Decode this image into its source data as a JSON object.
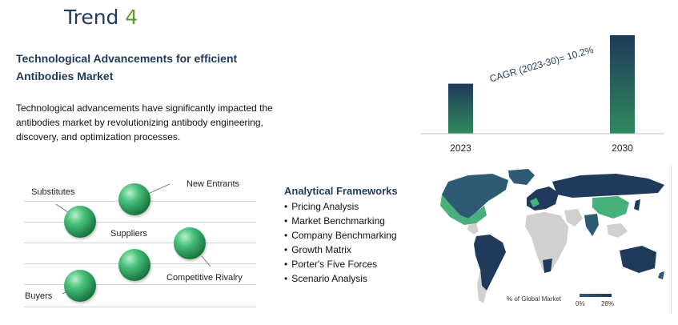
{
  "header": {
    "trend_word": "Trend",
    "trend_number": "4"
  },
  "section": {
    "heading": "Technological Advancements for efficient Antibodies Market",
    "body": "Technological advancements have significantly impacted the antibodies market by revolutionizing antibody engineering, discovery, and optimization processes."
  },
  "chart_data": {
    "type": "bar",
    "categories": [
      "2023",
      "2030"
    ],
    "values": [
      1.0,
      1.97
    ],
    "annotation": "CAGR (2023-30)= 10.2%",
    "colors": {
      "bar_top": "#1f3a5a",
      "bar_bottom": "#2f8a5e"
    }
  },
  "porter": {
    "substitutes": "Substitutes",
    "new_entrants": "New Entrants",
    "suppliers": "Suppliers",
    "competitive_rivalry": "Competitive Rivalry",
    "buyers": "Buyers"
  },
  "frameworks": {
    "title": "Analytical Frameworks",
    "items": [
      "Pricing Analysis",
      "Market Benchmarking",
      "Company Benchmarking",
      "Growth Matrix",
      "Porter's Five Forces",
      "Scenario Analysis"
    ]
  },
  "map": {
    "legend_title": "% of Global Market",
    "legend_min": "0%",
    "legend_max": "28%",
    "colors": {
      "high": "#1f3a5a",
      "mid": "#2e5a74",
      "highlight": "#48b07a",
      "low": "#d0d0d0"
    }
  }
}
